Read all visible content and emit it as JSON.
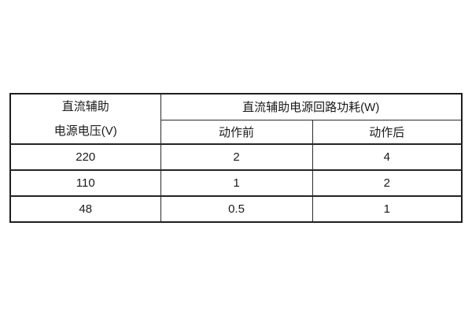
{
  "table": {
    "header": {
      "voltage_label_line1": "直流辅助",
      "voltage_label_line2": "电源电压(V)",
      "power_label": "直流辅助电源回路功耗(W)",
      "before_label": "动作前",
      "after_label": "动作后"
    },
    "rows": [
      {
        "voltage": "220",
        "before": "2",
        "after": "4"
      },
      {
        "voltage": "110",
        "before": "1",
        "after": "2"
      },
      {
        "voltage": "48",
        "before": "0.5",
        "after": "1"
      }
    ],
    "colors": {
      "border_outer": "#1e1e1e",
      "border_inner": "#2b2b2b",
      "text": "#1a1a1a",
      "background": "#ffffff"
    }
  }
}
